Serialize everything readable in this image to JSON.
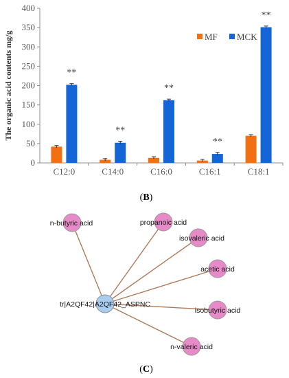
{
  "chart_data": {
    "type": "bar",
    "ylabel": "The organic acid contents mg/g",
    "ylim": [
      0,
      400
    ],
    "yticks": [
      0,
      50,
      100,
      150,
      200,
      250,
      300,
      350,
      400
    ],
    "categories": [
      "C12:0",
      "C14:0",
      "C16:0",
      "C16:1",
      "C18:1"
    ],
    "series": [
      {
        "name": "MF",
        "color": "#F07013",
        "values": [
          42,
          8,
          13,
          6,
          70
        ],
        "errors": [
          3,
          3,
          3,
          3,
          3
        ]
      },
      {
        "name": "MCK",
        "color": "#1466D6",
        "values": [
          202,
          52,
          162,
          23,
          351
        ],
        "errors": [
          3,
          4,
          3,
          4,
          3
        ]
      }
    ],
    "significance": [
      "**",
      "**",
      "**",
      "**",
      "**"
    ],
    "legend": "top-right",
    "grid": false
  },
  "panels": {
    "b": "(B)",
    "c": "(C)"
  },
  "network": {
    "center": {
      "label": "tr|A2QF42|A2QF42_ASPNC",
      "color": "#A9CDF0"
    },
    "nodes": [
      {
        "label": "n-butyric acid"
      },
      {
        "label": "propanoic acid"
      },
      {
        "label": "isovaleric acid"
      },
      {
        "label": "acetic acid"
      },
      {
        "label": "isobutyric acid"
      },
      {
        "label": "n-valeric acid"
      }
    ],
    "node_color": "#E68AC8",
    "edge_color": "#B07A5C"
  }
}
